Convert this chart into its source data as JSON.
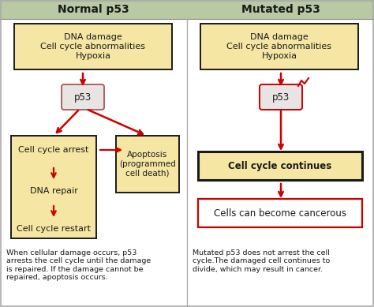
{
  "title_left": "Normal p53",
  "title_right": "Mutated p53",
  "header_bg": "#b8c9a4",
  "box_fill_yellow": "#f5e6a3",
  "box_fill_white": "#ffffff",
  "box_edge_dark": "#1a1a1a",
  "box_edge_red": "#cc0000",
  "box_edge_gray": "#b06060",
  "arrow_color": "#cc0000",
  "text_color": "#1a1a1a",
  "bg_color": "#ffffff",
  "divider_color": "#aaaaaa",
  "left_caption": "When cellular damage occurs, p53\narrests the cell cycle until the damage\nis repaired. If the damage cannot be\nrepaired, apoptosis occurs.",
  "right_caption": "Mutated p53 does not arrest the cell\ncycle.The damaged cell continues to\ndivide, which may result in cancer.",
  "box1_text": "DNA damage\nCell cycle abnormalities\nHypoxia",
  "p53_text": "p53",
  "arrest_text": "Cell cycle arrest",
  "dna_repair_text": "DNA repair",
  "restart_text": "Cell cycle restart",
  "apoptosis_text": "Apoptosis\n(programmed\ncell death)",
  "continues_text": "Cell cycle continues",
  "cancerous_text": "Cells can become cancerous",
  "fig_w": 4.74,
  "fig_h": 3.89,
  "dpi": 100
}
